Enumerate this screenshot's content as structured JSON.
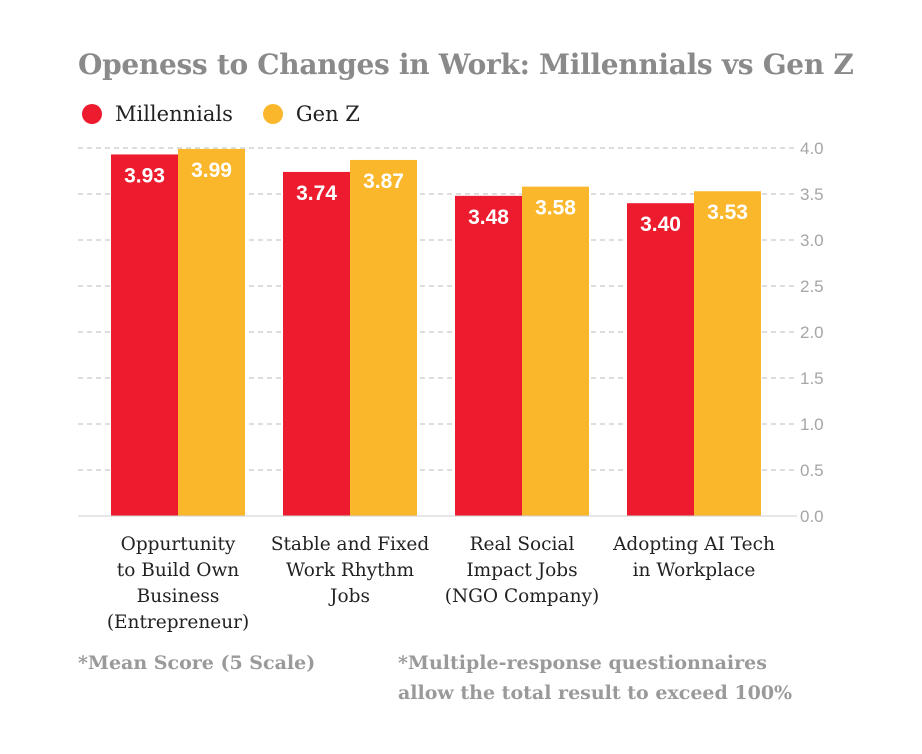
{
  "legend": [
    {
      "name": "Millennials",
      "color": "#ec1c2e"
    },
    {
      "name": "Gen Z",
      "color": "#fbb72b"
    }
  ],
  "chart_data": {
    "type": "bar",
    "title": "Openess to Changes in Work: Millennials vs Gen Z",
    "categories": [
      [
        "Oppurtunity",
        "to Build Own",
        "Business",
        "(Entrepreneur)"
      ],
      [
        "Stable and Fixed",
        "Work Rhythm",
        "Jobs"
      ],
      [
        "Real Social",
        "Impact Jobs",
        "(NGO Company)"
      ],
      [
        "Adopting AI Tech",
        "in Workplace"
      ]
    ],
    "series": [
      {
        "name": "Millennials",
        "values": [
          3.93,
          3.74,
          3.48,
          3.4
        ],
        "labels": [
          "3.93",
          "3.74",
          "3.48",
          "3.40"
        ],
        "color": "#ec1c2e"
      },
      {
        "name": "Gen Z",
        "values": [
          3.99,
          3.87,
          3.58,
          3.53
        ],
        "labels": [
          "3.99",
          "3.87",
          "3.58",
          "3.53"
        ],
        "color": "#fbb72b"
      }
    ],
    "ylim": [
      0,
      4.0
    ],
    "yticks": [
      "0.0",
      "0.5",
      "1.0",
      "1.5",
      "2.0",
      "2.5",
      "3.0",
      "3.5",
      "4.0"
    ],
    "y_axis_side": "right",
    "grid": true,
    "legend_position": "top-left"
  },
  "footnotes": {
    "left": "*Mean Score (5 Scale)",
    "right_line1": "*Multiple-response questionnaires",
    "right_line2": "allow the total result to exceed 100%"
  }
}
